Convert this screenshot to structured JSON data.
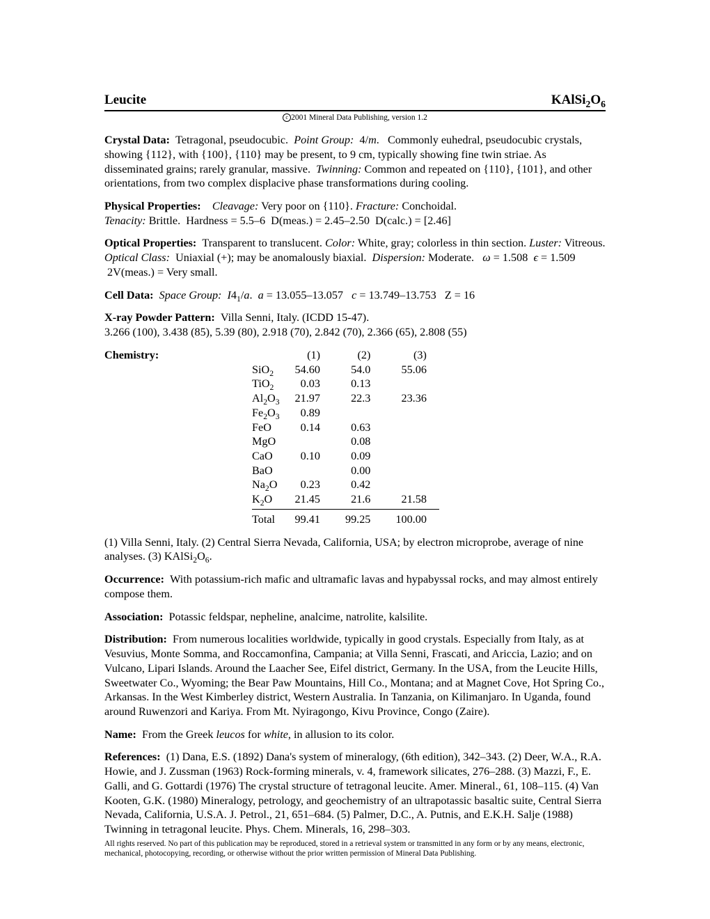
{
  "header": {
    "mineral_name": "Leucite",
    "formula_html": "KAlSi<sub>2</sub>O<sub>6</sub>"
  },
  "copyright": "2001 Mineral Data Publishing, version 1.2",
  "sections": {
    "crystal_data": {
      "label": "Crystal Data:",
      "body_html": "Tetragonal, pseudocubic. &nbsp;<span class='ital'>Point Group:</span>&nbsp; 4/<span class='ital'>m</span>. &nbsp; Commonly euhedral, pseudocubic crystals, showing {112}, with {100}, {110} may be present, to 9 cm, typically showing fine twin striae. As disseminated grains; rarely granular, massive. &nbsp;<span class='ital'>Twinning:</span> Common and repeated on {110}, {101}, and other orientations, from two complex displacive phase transformations during cooling."
    },
    "physical": {
      "label": "Physical Properties:",
      "body_html": "&nbsp;&nbsp;<span class='ital'>Cleavage:</span> Very poor on {110}. <span class='ital'>Fracture:</span> Conchoidal.<br><span class='ital'>Tenacity:</span> Brittle. &nbsp;Hardness = 5.5–6 &nbsp;D(meas.) = 2.45–2.50 &nbsp;D(calc.) = [2.46]"
    },
    "optical": {
      "label": "Optical Properties:",
      "body_html": "Transparent to translucent. <span class='ital'>Color:</span> White, gray; colorless in thin section. <span class='ital'>Luster:</span> Vitreous.<br><span class='ital'>Optical Class:</span>&nbsp; Uniaxial (+); may be anomalously biaxial. &nbsp;<span class='ital'>Dispersion:</span> Moderate. &nbsp;&nbsp;<span class='ital'>ω</span> = 1.508 &nbsp;<span class='ital'>ϵ</span> = 1.509 &nbsp;2V(meas.) = Very small."
    },
    "cell": {
      "label": "Cell Data:",
      "body_html": "<span class='ital'>Space Group:</span>&nbsp; <span class='ital'>I</span>4<sub>1</sub>/<span class='ital'>a</span>. &nbsp;<span class='ital'>a</span> = 13.055–13.057 &nbsp;&nbsp;<span class='ital'>c</span> = 13.749–13.753 &nbsp;&nbsp;Z = 16"
    },
    "xray": {
      "label": "X-ray Powder Pattern:",
      "body_html": "Villa Senni, Italy. (ICDD 15-47).<br>3.266 (100), 3.438 (85), 5.39 (80), 2.918 (70), 2.842 (70), 2.366 (65), 2.808 (55)"
    },
    "chemistry": {
      "label": "Chemistry:",
      "columns": [
        "(1)",
        "(2)",
        "(3)"
      ],
      "rows": [
        {
          "oxide_html": "SiO<sub>2</sub>",
          "v": [
            "54.60",
            "54.0",
            "55.06"
          ]
        },
        {
          "oxide_html": "TiO<sub>2</sub>",
          "v": [
            "0.03",
            "0.13",
            ""
          ]
        },
        {
          "oxide_html": "Al<sub>2</sub>O<sub>3</sub>",
          "v": [
            "21.97",
            "22.3",
            "23.36"
          ]
        },
        {
          "oxide_html": "Fe<sub>2</sub>O<sub>3</sub>",
          "v": [
            "0.89",
            "",
            ""
          ]
        },
        {
          "oxide_html": "FeO",
          "v": [
            "0.14",
            "0.63",
            ""
          ]
        },
        {
          "oxide_html": "MgO",
          "v": [
            "",
            "0.08",
            ""
          ]
        },
        {
          "oxide_html": "CaO",
          "v": [
            "0.10",
            "0.09",
            ""
          ]
        },
        {
          "oxide_html": "BaO",
          "v": [
            "",
            "0.00",
            ""
          ]
        },
        {
          "oxide_html": "Na<sub>2</sub>O",
          "v": [
            "0.23",
            "0.42",
            ""
          ]
        },
        {
          "oxide_html": "K<sub>2</sub>O",
          "v": [
            "21.45",
            "21.6",
            "21.58"
          ]
        }
      ],
      "total_label": "Total",
      "totals": [
        "99.41",
        "99.25",
        "100.00"
      ],
      "footnote_html": "(1) Villa Senni, Italy. (2) Central Sierra Nevada, California, USA; by electron microprobe, average of nine analyses. (3) KAlSi<sub>2</sub>O<sub>6</sub>."
    },
    "occurrence": {
      "label": "Occurrence:",
      "body_html": "With potassium-rich mafic and ultramafic lavas and hypabyssal rocks, and may almost entirely compose them."
    },
    "association": {
      "label": "Association:",
      "body_html": "Potassic feldspar, nepheline, analcime, natrolite, kalsilite."
    },
    "distribution": {
      "label": "Distribution:",
      "body_html": "From numerous localities worldwide, typically in good crystals. Especially from Italy, as at Vesuvius, Monte Somma, and Roccamonfina, Campania; at Villa Senni, Frascati, and Ariccia, Lazio; and on Vulcano, Lipari Islands. Around the Laacher See, Eifel district, Germany. In the USA, from the Leucite Hills, Sweetwater Co., Wyoming; the Bear Paw Mountains, Hill Co., Montana; and at Magnet Cove, Hot Spring Co., Arkansas. In the West Kimberley district, Western Australia. In Tanzania, on Kilimanjaro. In Uganda, found around Ruwenzori and Kariya. From Mt. Nyiragongo, Kivu Province, Congo (Zaire)."
    },
    "name": {
      "label": "Name:",
      "body_html": "From the Greek <span class='ital'>leucos</span> for <span class='ital'>white</span>, in allusion to its color."
    },
    "references": {
      "label": "References:",
      "body_html": "(1) Dana, E.S. (1892) Dana's system of mineralogy, (6th edition), 342–343. (2)&nbsp;Deer, W.A., R.A. Howie, and J. Zussman (1963) Rock-forming minerals, v. 4, framework silicates, 276–288. (3) Mazzi, F., E. Galli, and G. Gottardi (1976) The crystal structure of tetragonal leucite. Amer. Mineral., 61, 108–115. (4) Van Kooten, G.K. (1980) Mineralogy, petrology, and geochemistry of an ultrapotassic basaltic suite, Central Sierra Nevada, California, U.S.A. J. Petrol., 21, 651–684. (5) Palmer, D.C., A. Putnis, and E.K.H. Salje (1988) Twinning in tetragonal leucite. Phys. Chem. Minerals, 16, 298–303."
    }
  },
  "footer": "All rights reserved. No part of this publication may be reproduced, stored in a retrieval system or transmitted in any form or by any means, electronic, mechanical, photocopying, recording, or otherwise without the prior written permission of Mineral Data Publishing."
}
